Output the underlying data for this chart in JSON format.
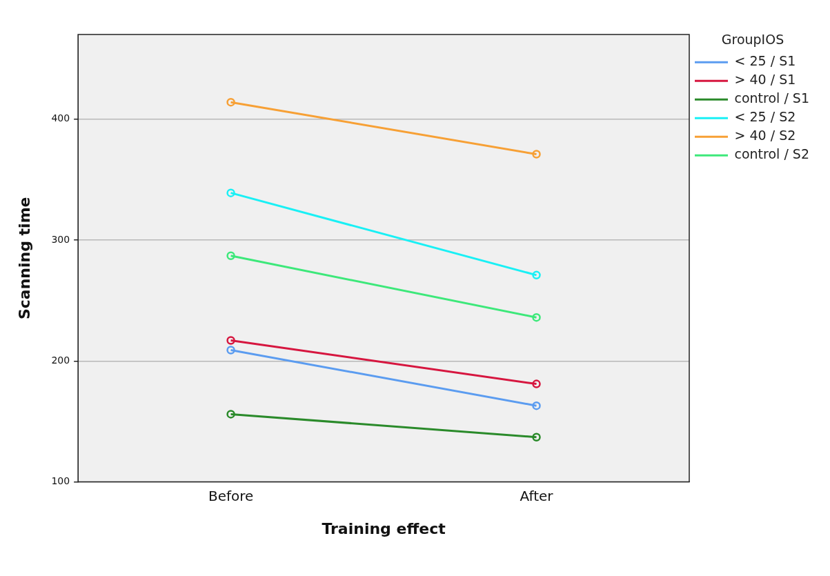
{
  "chart_data": {
    "type": "line",
    "xlabel": "Training effect",
    "ylabel": "Scanning time",
    "legend_title": "GroupIOS",
    "categories": [
      "Before",
      "After"
    ],
    "series": [
      {
        "name": "< 25 / S1",
        "color": "#5b9cf0",
        "values": [
          209,
          163
        ]
      },
      {
        "name": "> 40 / S1",
        "color": "#d6163f",
        "values": [
          217,
          181
        ]
      },
      {
        "name": "control / S1",
        "color": "#2a8a2a",
        "values": [
          156,
          137
        ]
      },
      {
        "name": "< 25 / S2",
        "color": "#19f0f5",
        "values": [
          339,
          271
        ]
      },
      {
        "name": "> 40 / S2",
        "color": "#f7a035",
        "values": [
          414,
          371
        ]
      },
      {
        "name": "control / S2",
        "color": "#3de87a",
        "values": [
          287,
          236
        ]
      }
    ],
    "ylim": [
      100,
      470
    ],
    "yticks": [
      100,
      200,
      300,
      400
    ],
    "grid": "y",
    "legend": "right",
    "marker": "circle",
    "line_style": "solid"
  }
}
